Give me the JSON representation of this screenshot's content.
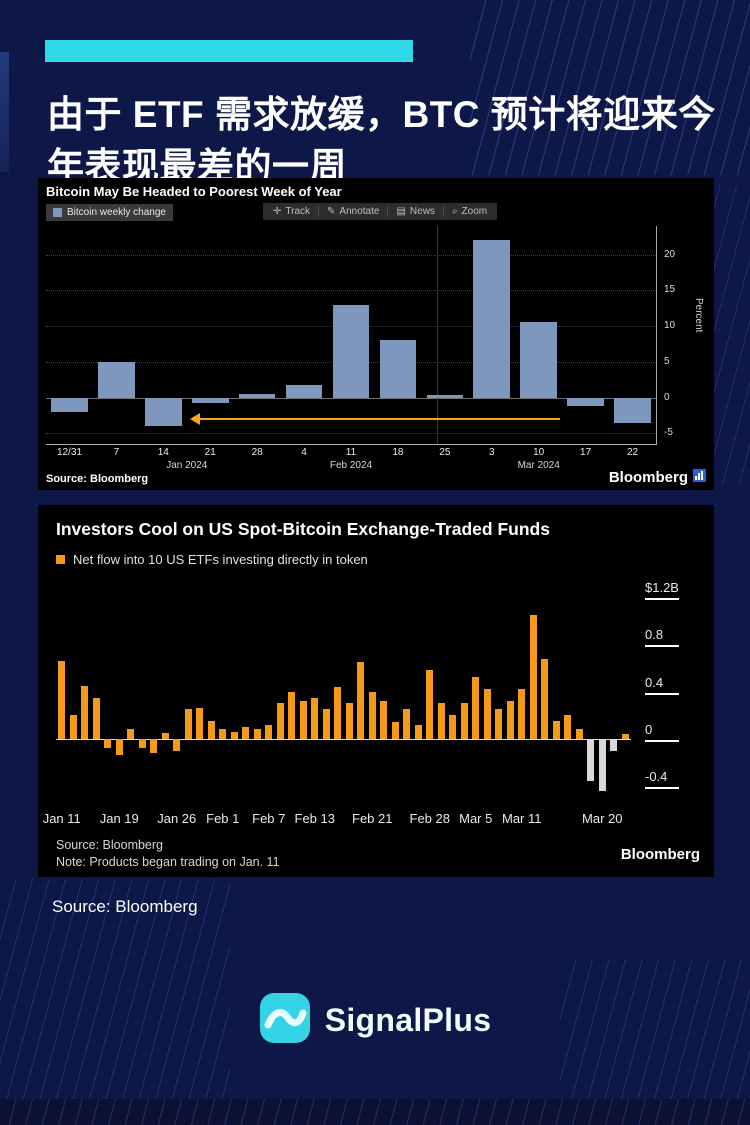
{
  "header": {
    "accent_color": "#2fd9e7",
    "headline": "由于 ETF 需求放缓，BTC 预计将迎来今年表现最差的一周"
  },
  "footer": {
    "source": "Source: Bloomberg"
  },
  "brand": {
    "name": "SignalPlus"
  },
  "chart_data": [
    {
      "type": "bar",
      "title": "Bitcoin May Be Headed to Poorest Week of Year",
      "legend": "Bitcoin weekly change",
      "toolbar": [
        {
          "icon": "✛",
          "label": "Track"
        },
        {
          "icon": "✎",
          "label": "Annotate"
        },
        {
          "icon": "▤",
          "label": "News"
        },
        {
          "icon": "⌕",
          "label": "Zoom"
        }
      ],
      "ylabel": "Percent",
      "ylim": [
        -6.5,
        24
      ],
      "yticks": [
        -5,
        0,
        5,
        10,
        15,
        20
      ],
      "categories": [
        "12/31",
        "7",
        "14",
        "21",
        "28",
        "4",
        "11",
        "18",
        "25",
        "3",
        "10",
        "17",
        "22"
      ],
      "values": [
        -2,
        5,
        -4,
        -0.7,
        0.5,
        1.8,
        13,
        8,
        0.3,
        22,
        10.5,
        -1.2,
        -3.5
      ],
      "month_labels": [
        {
          "label": "Jan 2024",
          "i": 2.5
        },
        {
          "label": "Feb 2024",
          "i": 6
        },
        {
          "label": "Mar 2024",
          "i": 10
        }
      ],
      "bar_color": "#7d98bc",
      "arrow_color": "#f5a623",
      "grid": "dotted-horizontal",
      "legend_position": "top-left",
      "source": "Source: Bloomberg",
      "brand": "Bloomberg"
    },
    {
      "type": "bar",
      "title": "Investors Cool on US Spot-Bitcoin Exchange-Traded Funds",
      "legend": "Net flow into 10 US ETFs investing directly in token",
      "ylim": [
        -0.56,
        1.32
      ],
      "yticks": [
        {
          "label": "$1.2B",
          "v": 1.2
        },
        {
          "label": "0.8",
          "v": 0.8
        },
        {
          "label": "0.4",
          "v": 0.4
        },
        {
          "label": "0",
          "v": 0
        },
        {
          "label": "-0.4",
          "v": -0.4
        }
      ],
      "values": [
        0.66,
        0.2,
        0.45,
        0.35,
        -0.08,
        -0.14,
        0.08,
        -0.08,
        -0.12,
        0.05,
        -0.1,
        0.25,
        0.26,
        0.15,
        0.08,
        0.06,
        0.1,
        0.08,
        0.12,
        0.3,
        0.4,
        0.32,
        0.35,
        0.25,
        0.44,
        0.3,
        0.65,
        0.4,
        0.32,
        0.14,
        0.25,
        0.12,
        0.58,
        0.3,
        0.2,
        0.3,
        0.52,
        0.42,
        0.25,
        0.32,
        0.42,
        1.05,
        0.68,
        0.15,
        0.2,
        0.08,
        -0.36,
        -0.44,
        -0.1,
        0.04
      ],
      "muted_indices": [
        46,
        47,
        48
      ],
      "x_ticks": [
        {
          "label": "Jan 11",
          "i": 0
        },
        {
          "label": "Jan 19",
          "i": 5
        },
        {
          "label": "Jan 26",
          "i": 10
        },
        {
          "label": "Feb 1",
          "i": 14
        },
        {
          "label": "Feb 7",
          "i": 18
        },
        {
          "label": "Feb 13",
          "i": 22
        },
        {
          "label": "Feb 21",
          "i": 27
        },
        {
          "label": "Feb 28",
          "i": 32
        },
        {
          "label": "Mar 5",
          "i": 36
        },
        {
          "label": "Mar 11",
          "i": 40
        },
        {
          "label": "Mar 20",
          "i": 47
        }
      ],
      "bar_color": "#f59a18",
      "muted_color": "#d8d8d8",
      "grid": "zero-line-only",
      "legend_position": "top-left",
      "source": "Source: Bloomberg",
      "note": "Note: Products began trading on Jan. 11",
      "brand": "Bloomberg"
    }
  ]
}
